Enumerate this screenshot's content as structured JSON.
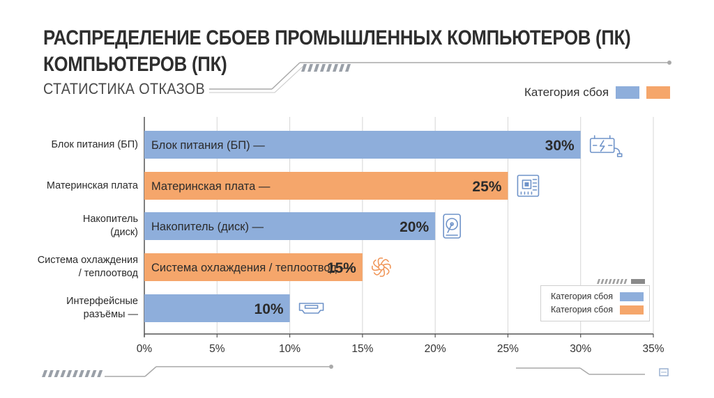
{
  "header": {
    "title_line1": "РАСПРЕДЕЛЕНИЕ СБОЕВ ПРОМЫШЛЕННЫХ КОМПЬЮТЕРОВ (ПК)",
    "title_line2": "КОМПЬЮТЕРОВ (ПК)",
    "subtitle": "СТАТИСТИКА ОТКАЗОВ"
  },
  "legend_top": {
    "label": "Категория сбоя"
  },
  "legend_box": {
    "entries": [
      "Категория сбоя",
      "Категория сбоя"
    ]
  },
  "colors": {
    "blue": "#8eaedb",
    "orange": "#f5a66b",
    "icon": "#6f93c9"
  },
  "chart_data": {
    "type": "bar",
    "orientation": "horizontal",
    "categories": [
      "Блок питания (БП)",
      "Материнская плата",
      "Накопитель (диск)",
      "Система охлаждения / теплоотвод",
      "Интерфейсные разъёмы —"
    ],
    "axis_labels": [
      "Блок питания (БП)",
      "Материнская плата",
      "Накопитель\n(диск)",
      "Система охлаждения\n/ теплоотвод",
      "Интерфейсные\nразъёмы —"
    ],
    "bar_labels": [
      "Блок питания (БП) —",
      "Материнская плата —",
      "Накопитель (диск) —",
      "Система охлаждения / теплоотвод —",
      ""
    ],
    "values": [
      30,
      25,
      20,
      15,
      10
    ],
    "value_labels": [
      "30%",
      "25%",
      "20%",
      "15%",
      "10%"
    ],
    "bar_colors": [
      "blue",
      "orange",
      "blue",
      "orange",
      "blue"
    ],
    "icons": [
      "power-supply-icon",
      "motherboard-icon",
      "hard-drive-icon",
      "fan-icon",
      "connector-port-icon"
    ],
    "xlim": [
      0,
      35
    ],
    "xticks": [
      0,
      5,
      10,
      15,
      20,
      25,
      30,
      35
    ],
    "xtick_labels": [
      "0%",
      "5%",
      "10%",
      "15%",
      "20%",
      "25%",
      "30%",
      "35%"
    ],
    "grid": "vertical"
  }
}
